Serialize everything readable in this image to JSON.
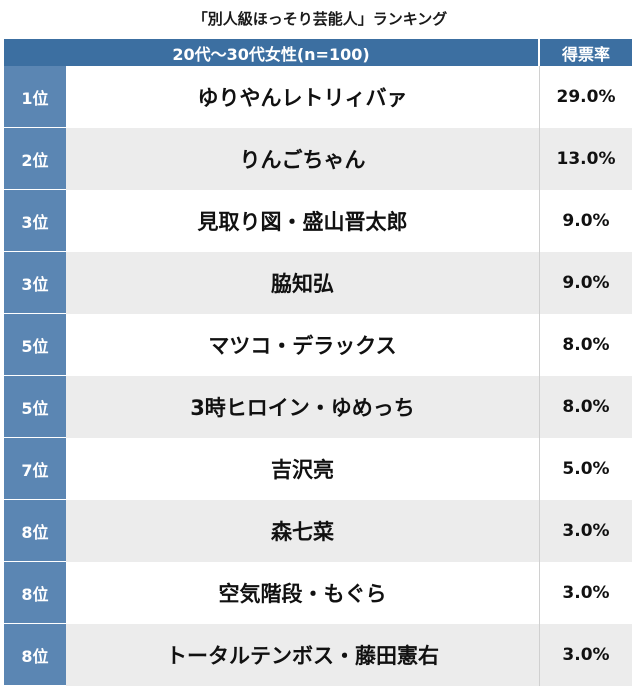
{
  "title": "「別人級ほっそり芸能人」ランキング",
  "header": {
    "group": "20代〜30代女性(n=100)",
    "score": "得票率"
  },
  "rows": [
    {
      "rank": "1位",
      "name": "ゆりやんレトリィバァ",
      "percent": "29.0%"
    },
    {
      "rank": "2位",
      "name": "りんごちゃん",
      "percent": "13.0%"
    },
    {
      "rank": "3位",
      "name": "見取り図・盛山晋太郎",
      "percent": "9.0%"
    },
    {
      "rank": "3位",
      "name": "脇知弘",
      "percent": "9.0%"
    },
    {
      "rank": "5位",
      "name": "マツコ・デラックス",
      "percent": "8.0%"
    },
    {
      "rank": "5位",
      "name": "3時ヒロイン・ゆめっち",
      "percent": "8.0%"
    },
    {
      "rank": "7位",
      "name": "吉沢亮",
      "percent": "5.0%"
    },
    {
      "rank": "8位",
      "name": "森七菜",
      "percent": "3.0%"
    },
    {
      "rank": "8位",
      "name": "空気階段・もぐら",
      "percent": "3.0%"
    },
    {
      "rank": "8位",
      "name": "トータルテンボス・藤田憲右",
      "percent": "3.0%"
    }
  ]
}
